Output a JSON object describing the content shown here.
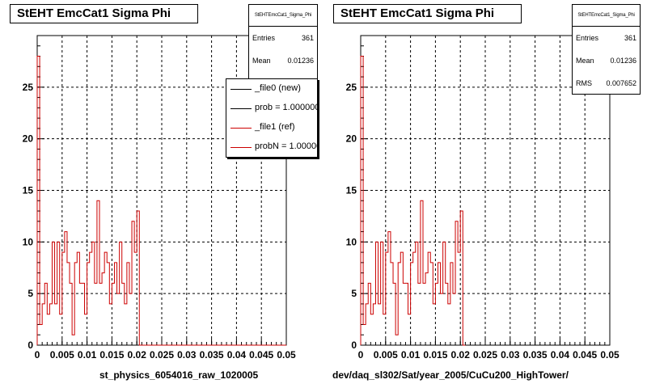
{
  "colors": {
    "data": "#cc0000",
    "ref": "#cc0000",
    "new": "#000000",
    "grid": "#000000"
  },
  "panels": [
    {
      "title": "StEHT EmcCat1 Sigma Phi",
      "stats": {
        "header": "StEHTEmcCat1_Sigma_Phi",
        "rows": [
          {
            "label": "Entries",
            "value": "361"
          },
          {
            "label": "Mean",
            "value": "0.01236"
          }
        ]
      },
      "legend": [
        {
          "label": "_file0 (new)"
        },
        {
          "label": "prob = 1.000000"
        },
        {
          "label": "_file1 (ref)"
        },
        {
          "label": "probN = 1.000000"
        }
      ],
      "subtitle": "st_physics_6054016_raw_1020005"
    },
    {
      "title": "StEHT EmcCat1 Sigma Phi",
      "stats": {
        "header": "StEHTEmcCat1_Sigma_Phi",
        "rows": [
          {
            "label": "Entries",
            "value": "361"
          },
          {
            "label": "Mean",
            "value": "0.01236"
          },
          {
            "label": "RMS",
            "value": "0.007652"
          }
        ]
      },
      "subtitle": "dev/daq_sl302/Sat/year_2005/CuCu200_HighTower/"
    }
  ],
  "chart_data": [
    {
      "type": "line",
      "title": "StEHT EmcCat1 Sigma Phi",
      "xlabel": "",
      "ylabel": "",
      "xlim": [
        0,
        0.05
      ],
      "ylim": [
        0,
        30
      ],
      "xticks": [
        "0",
        "0.005",
        "0.01",
        "0.015",
        "0.02",
        "0.025",
        "0.03",
        "0.035",
        "0.04",
        "0.045",
        "0.05"
      ],
      "yticks": [
        "0",
        "5",
        "10",
        "15",
        "20",
        "25"
      ],
      "grid": true,
      "bin_width": 0.0005,
      "series": [
        {
          "name": "_file1 (ref)",
          "values": [
            28,
            2,
            4,
            6,
            3,
            4,
            10,
            4,
            10,
            3,
            9,
            11,
            8,
            6,
            1,
            8,
            9,
            6,
            6,
            3,
            8,
            9,
            10,
            6,
            14,
            6,
            7,
            9,
            8,
            4,
            6,
            8,
            5,
            10,
            6,
            4,
            8,
            5,
            12,
            9,
            13,
            0
          ]
        }
      ]
    },
    {
      "type": "line",
      "title": "StEHT EmcCat1 Sigma Phi",
      "xlabel": "",
      "ylabel": "",
      "xlim": [
        0,
        0.05
      ],
      "ylim": [
        0,
        30
      ],
      "xticks": [
        "0",
        "0.005",
        "0.01",
        "0.015",
        "0.02",
        "0.025",
        "0.03",
        "0.035",
        "0.04",
        "0.045",
        "0.05"
      ],
      "yticks": [
        "0",
        "5",
        "10",
        "15",
        "20",
        "25"
      ],
      "grid": true,
      "bin_width": 0.0005,
      "series": [
        {
          "values": [
            28,
            2,
            4,
            6,
            3,
            4,
            10,
            4,
            10,
            3,
            9,
            11,
            8,
            6,
            1,
            8,
            9,
            6,
            6,
            3,
            8,
            9,
            10,
            6,
            14,
            6,
            7,
            9,
            8,
            4,
            6,
            8,
            5,
            10,
            6,
            4,
            8,
            5,
            12,
            9,
            13,
            0
          ]
        }
      ]
    }
  ]
}
